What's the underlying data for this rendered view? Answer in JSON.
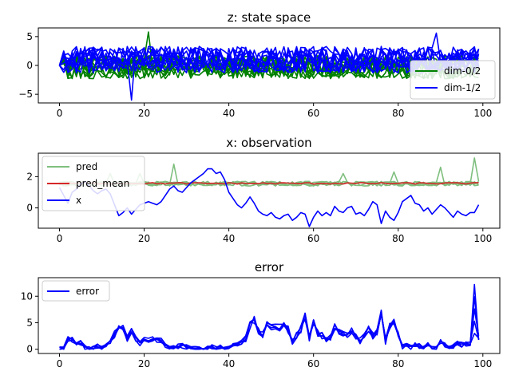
{
  "chart_data": [
    {
      "type": "line",
      "title": "z: state space",
      "xlim": [
        -5,
        104
      ],
      "ylim": [
        -6.5,
        6.5
      ],
      "xticks": [
        0,
        20,
        40,
        60,
        80,
        100
      ],
      "yticks": [
        -5,
        0,
        5
      ],
      "legend": {
        "placement": "right",
        "entries": [
          "dim-0/2",
          "dim-1/2"
        ]
      },
      "series": [
        {
          "name": "dim-0/2",
          "color": "#008000",
          "count": 10,
          "center": -0.3,
          "amplitude": 2.0,
          "max": 5.8,
          "min": -4.0
        },
        {
          "name": "dim-1/2",
          "color": "#0000ff",
          "count": 10,
          "center": 1.0,
          "amplitude": 2.3,
          "max": 5.6,
          "min": -6.0
        }
      ]
    },
    {
      "type": "line",
      "title": "x: observation",
      "xlim": [
        -5,
        104
      ],
      "ylim": [
        -1.3,
        3.5
      ],
      "xticks": [
        0,
        20,
        40,
        60,
        80,
        100
      ],
      "yticks": [
        0,
        2
      ],
      "legend": {
        "placement": "top-left",
        "entries": [
          "pred",
          "pred_mean",
          "x"
        ]
      },
      "series": [
        {
          "name": "pred",
          "color": "#7fbf7f",
          "count": 5,
          "center": 1.55,
          "amplitude": 0.15,
          "spikes": [
            [
              12,
              2.2
            ],
            [
              19,
              2.2
            ],
            [
              27,
              2.8
            ],
            [
              67,
              2.2
            ],
            [
              79,
              2.3
            ],
            [
              90,
              2.6
            ],
            [
              98,
              3.2
            ]
          ]
        },
        {
          "name": "pred_mean",
          "color": "#d62728",
          "count": 1,
          "center": 1.57,
          "amplitude": 0.05
        },
        {
          "name": "x",
          "color": "#0000ff",
          "count": 1,
          "x": [
            0,
            1,
            2,
            3,
            4,
            5,
            6,
            7,
            8,
            9,
            10,
            11,
            12,
            13,
            14,
            15,
            16,
            17,
            18,
            19,
            20,
            21,
            22,
            23,
            24,
            25,
            26,
            27,
            28,
            29,
            30,
            31,
            32,
            33,
            34,
            35,
            36,
            37,
            38,
            39,
            40,
            41,
            42,
            43,
            44,
            45,
            46,
            47,
            48,
            49,
            50,
            51,
            52,
            53,
            54,
            55,
            56,
            57,
            58,
            59,
            60,
            61,
            62,
            63,
            64,
            65,
            66,
            67,
            68,
            69,
            70,
            71,
            72,
            73,
            74,
            75,
            76,
            77,
            78,
            79,
            80,
            81,
            82,
            83,
            84,
            85,
            86,
            87,
            88,
            89,
            90,
            91,
            92,
            93,
            94,
            95,
            96,
            97,
            98,
            99
          ],
          "values": [
            1.3,
            0.8,
            0.3,
            1.0,
            1.2,
            1.5,
            1.7,
            1.4,
            1.1,
            0.9,
            1.1,
            1.2,
            0.9,
            0.2,
            -0.5,
            -0.3,
            0.0,
            -0.4,
            -0.1,
            0.2,
            0.3,
            0.4,
            0.3,
            0.2,
            0.4,
            0.8,
            1.2,
            1.4,
            1.1,
            1.0,
            1.3,
            1.6,
            1.8,
            2.0,
            2.2,
            2.5,
            2.5,
            2.2,
            2.3,
            1.8,
            1.0,
            0.6,
            0.2,
            0.0,
            0.3,
            0.7,
            0.3,
            -0.2,
            -0.4,
            -0.5,
            -0.3,
            -0.6,
            -0.7,
            -0.5,
            -0.4,
            -0.8,
            -0.6,
            -0.3,
            -0.4,
            -1.2,
            -0.6,
            -0.2,
            -0.5,
            -0.3,
            -0.5,
            0.1,
            -0.2,
            -0.3,
            0.0,
            0.1,
            -0.4,
            -0.3,
            -0.5,
            -0.1,
            0.4,
            0.2,
            -1.0,
            -0.2,
            -0.6,
            -0.8,
            -0.3,
            0.4,
            0.6,
            0.8,
            0.3,
            0.2,
            -0.2,
            0.0,
            -0.4,
            -0.1,
            0.2,
            0.0,
            -0.3,
            -0.6,
            -0.2,
            -0.4,
            -0.5,
            -0.3,
            -0.3,
            0.2
          ]
        }
      ]
    },
    {
      "type": "line",
      "title": "error",
      "xlim": [
        -5,
        104
      ],
      "ylim": [
        -0.8,
        13.5
      ],
      "xticks": [
        0,
        20,
        40,
        60,
        80,
        100
      ],
      "yticks": [
        0,
        5,
        10
      ],
      "legend": {
        "placement": "top-left",
        "entries": [
          "error"
        ]
      },
      "series": [
        {
          "name": "error",
          "color": "#0000ff",
          "count": 5,
          "x": [
            0,
            1,
            2,
            3,
            4,
            5,
            6,
            7,
            8,
            9,
            10,
            11,
            12,
            13,
            14,
            15,
            16,
            17,
            18,
            19,
            20,
            21,
            22,
            23,
            24,
            25,
            26,
            27,
            28,
            29,
            30,
            31,
            32,
            33,
            34,
            35,
            36,
            37,
            38,
            39,
            40,
            41,
            42,
            43,
            44,
            45,
            46,
            47,
            48,
            49,
            50,
            51,
            52,
            53,
            54,
            55,
            56,
            57,
            58,
            59,
            60,
            61,
            62,
            63,
            64,
            65,
            66,
            67,
            68,
            69,
            70,
            71,
            72,
            73,
            74,
            75,
            76,
            77,
            78,
            79,
            80,
            81,
            82,
            83,
            84,
            85,
            86,
            87,
            88,
            89,
            90,
            91,
            92,
            93,
            94,
            95,
            96,
            97,
            98,
            99
          ],
          "values": [
            0.1,
            0.3,
            2.0,
            1.8,
            1.0,
            1.3,
            0.3,
            0.1,
            0.2,
            0.6,
            0.1,
            0.5,
            1.5,
            2.8,
            4.5,
            3.9,
            2.0,
            3.6,
            2.0,
            1.0,
            1.8,
            1.6,
            1.8,
            1.9,
            1.6,
            0.6,
            0.4,
            0.3,
            0.6,
            0.6,
            0.4,
            0.2,
            0.1,
            0.1,
            0.0,
            0.4,
            0.4,
            0.1,
            0.6,
            0.0,
            0.2,
            0.6,
            0.9,
            1.4,
            2.0,
            4.5,
            5.4,
            3.5,
            2.8,
            4.6,
            4.0,
            4.5,
            4.2,
            4.6,
            3.7,
            1.5,
            2.6,
            3.8,
            6.5,
            2.1,
            4.8,
            3.0,
            2.6,
            2.0,
            2.3,
            4.2,
            3.5,
            3.0,
            2.8,
            3.6,
            2.3,
            1.6,
            2.5,
            3.8,
            2.5,
            3.3,
            7.2,
            1.5,
            4.4,
            5.5,
            3.0,
            0.4,
            1.0,
            0.3,
            0.8,
            0.6,
            0.2,
            1.2,
            0.5,
            0.4,
            1.5,
            0.8,
            0.6,
            0.5,
            1.0,
            0.8,
            0.9,
            1.0,
            10.5,
            2.0
          ]
        }
      ]
    }
  ]
}
